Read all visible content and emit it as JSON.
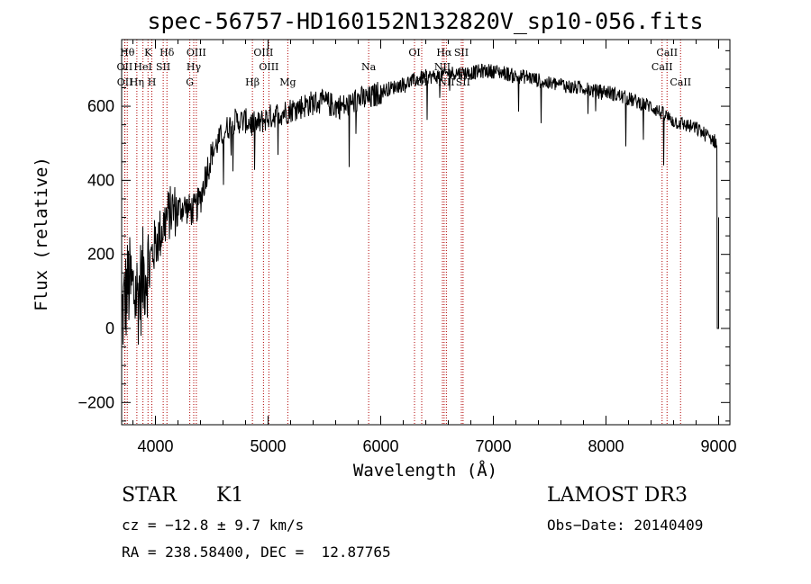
{
  "chart_data": {
    "type": "line",
    "title": "spec-56757-HD160152N132820V_sp10-056.fits",
    "xlabel": "Wavelength (Å)",
    "ylabel": "Flux (relative)",
    "xlim": [
      3700,
      9100
    ],
    "ylim": [
      -260,
      780
    ],
    "xticks": [
      4000,
      5000,
      6000,
      7000,
      8000,
      9000
    ],
    "yticks": [
      -200,
      0,
      200,
      400,
      600
    ],
    "spectrum_envelope": {
      "x": [
        3700,
        3760,
        3800,
        3850,
        3900,
        3950,
        4000,
        4050,
        4100,
        4150,
        4200,
        4250,
        4300,
        4350,
        4400,
        4450,
        4500,
        4600,
        4700,
        4800,
        4900,
        5000,
        5100,
        5200,
        5300,
        5400,
        5500,
        5600,
        5700,
        5800,
        5900,
        6000,
        6100,
        6200,
        6300,
        6400,
        6500,
        6600,
        6700,
        6800,
        6900,
        7000,
        7100,
        7200,
        7300,
        7400,
        7500,
        7600,
        7700,
        7800,
        7900,
        8000,
        8100,
        8200,
        8300,
        8400,
        8500,
        8600,
        8700,
        8800,
        8900,
        8950,
        8985,
        9000
      ],
      "y": [
        30,
        120,
        100,
        90,
        150,
        180,
        230,
        260,
        300,
        320,
        320,
        330,
        320,
        320,
        350,
        420,
        470,
        530,
        560,
        560,
        550,
        570,
        580,
        590,
        600,
        610,
        610,
        600,
        600,
        620,
        620,
        640,
        650,
        660,
        670,
        680,
        680,
        690,
        690,
        690,
        695,
        695,
        690,
        680,
        680,
        670,
        660,
        660,
        650,
        650,
        640,
        640,
        630,
        620,
        610,
        600,
        580,
        560,
        550,
        540,
        520,
        510,
        500,
        0
      ]
    },
    "line_markers": [
      {
        "label": "Hθ",
        "x": 3750,
        "row": 0
      },
      {
        "label": "OII",
        "x": 3727,
        "row": 1
      },
      {
        "label": "OII",
        "x": 3729,
        "row": 2
      },
      {
        "label": "Hη",
        "x": 3835,
        "row": 2
      },
      {
        "label": "HeI",
        "x": 3889,
        "row": 1
      },
      {
        "label": "K",
        "x": 3934,
        "row": 0
      },
      {
        "label": "H",
        "x": 3968,
        "row": 2
      },
      {
        "label": "SII",
        "x": 4069,
        "row": 1
      },
      {
        "label": "Hδ",
        "x": 4102,
        "row": 0
      },
      {
        "label": "OIII",
        "x": 4363,
        "row": 0
      },
      {
        "label": "Hγ",
        "x": 4340,
        "row": 1
      },
      {
        "label": "G",
        "x": 4305,
        "row": 2
      },
      {
        "label": "Hβ",
        "x": 4861,
        "row": 2
      },
      {
        "label": "OIII",
        "x": 4959,
        "row": 0
      },
      {
        "label": "OIII",
        "x": 5007,
        "row": 1
      },
      {
        "label": "Mg",
        "x": 5175,
        "row": 2
      },
      {
        "label": "Na",
        "x": 5893,
        "row": 1
      },
      {
        "label": "OI",
        "x": 6300,
        "row": 0
      },
      {
        "label": "OI",
        "x": 6364,
        "row": 2
      },
      {
        "label": "Hα",
        "x": 6563,
        "row": 0
      },
      {
        "label": "NII",
        "x": 6548,
        "row": 1
      },
      {
        "label": "NII",
        "x": 6583,
        "row": 2
      },
      {
        "label": "SII",
        "x": 6716,
        "row": 0
      },
      {
        "label": "SII",
        "x": 6731,
        "row": 2
      },
      {
        "label": "CaII",
        "x": 8542,
        "row": 0
      },
      {
        "label": "CaII",
        "x": 8498,
        "row": 1
      },
      {
        "label": "CaII",
        "x": 8662,
        "row": 2
      }
    ]
  },
  "info": {
    "class": "STAR",
    "subclass": "K1",
    "survey": "LAMOST DR3",
    "cz": "cz = −12.8 ± 9.7 km/s",
    "obs_date": "Obs−Date: 20140409",
    "radec": "RA = 238.58400, DEC =  12.87765"
  },
  "colors": {
    "line_marker": "#b00000",
    "spectrum": "#000000"
  }
}
